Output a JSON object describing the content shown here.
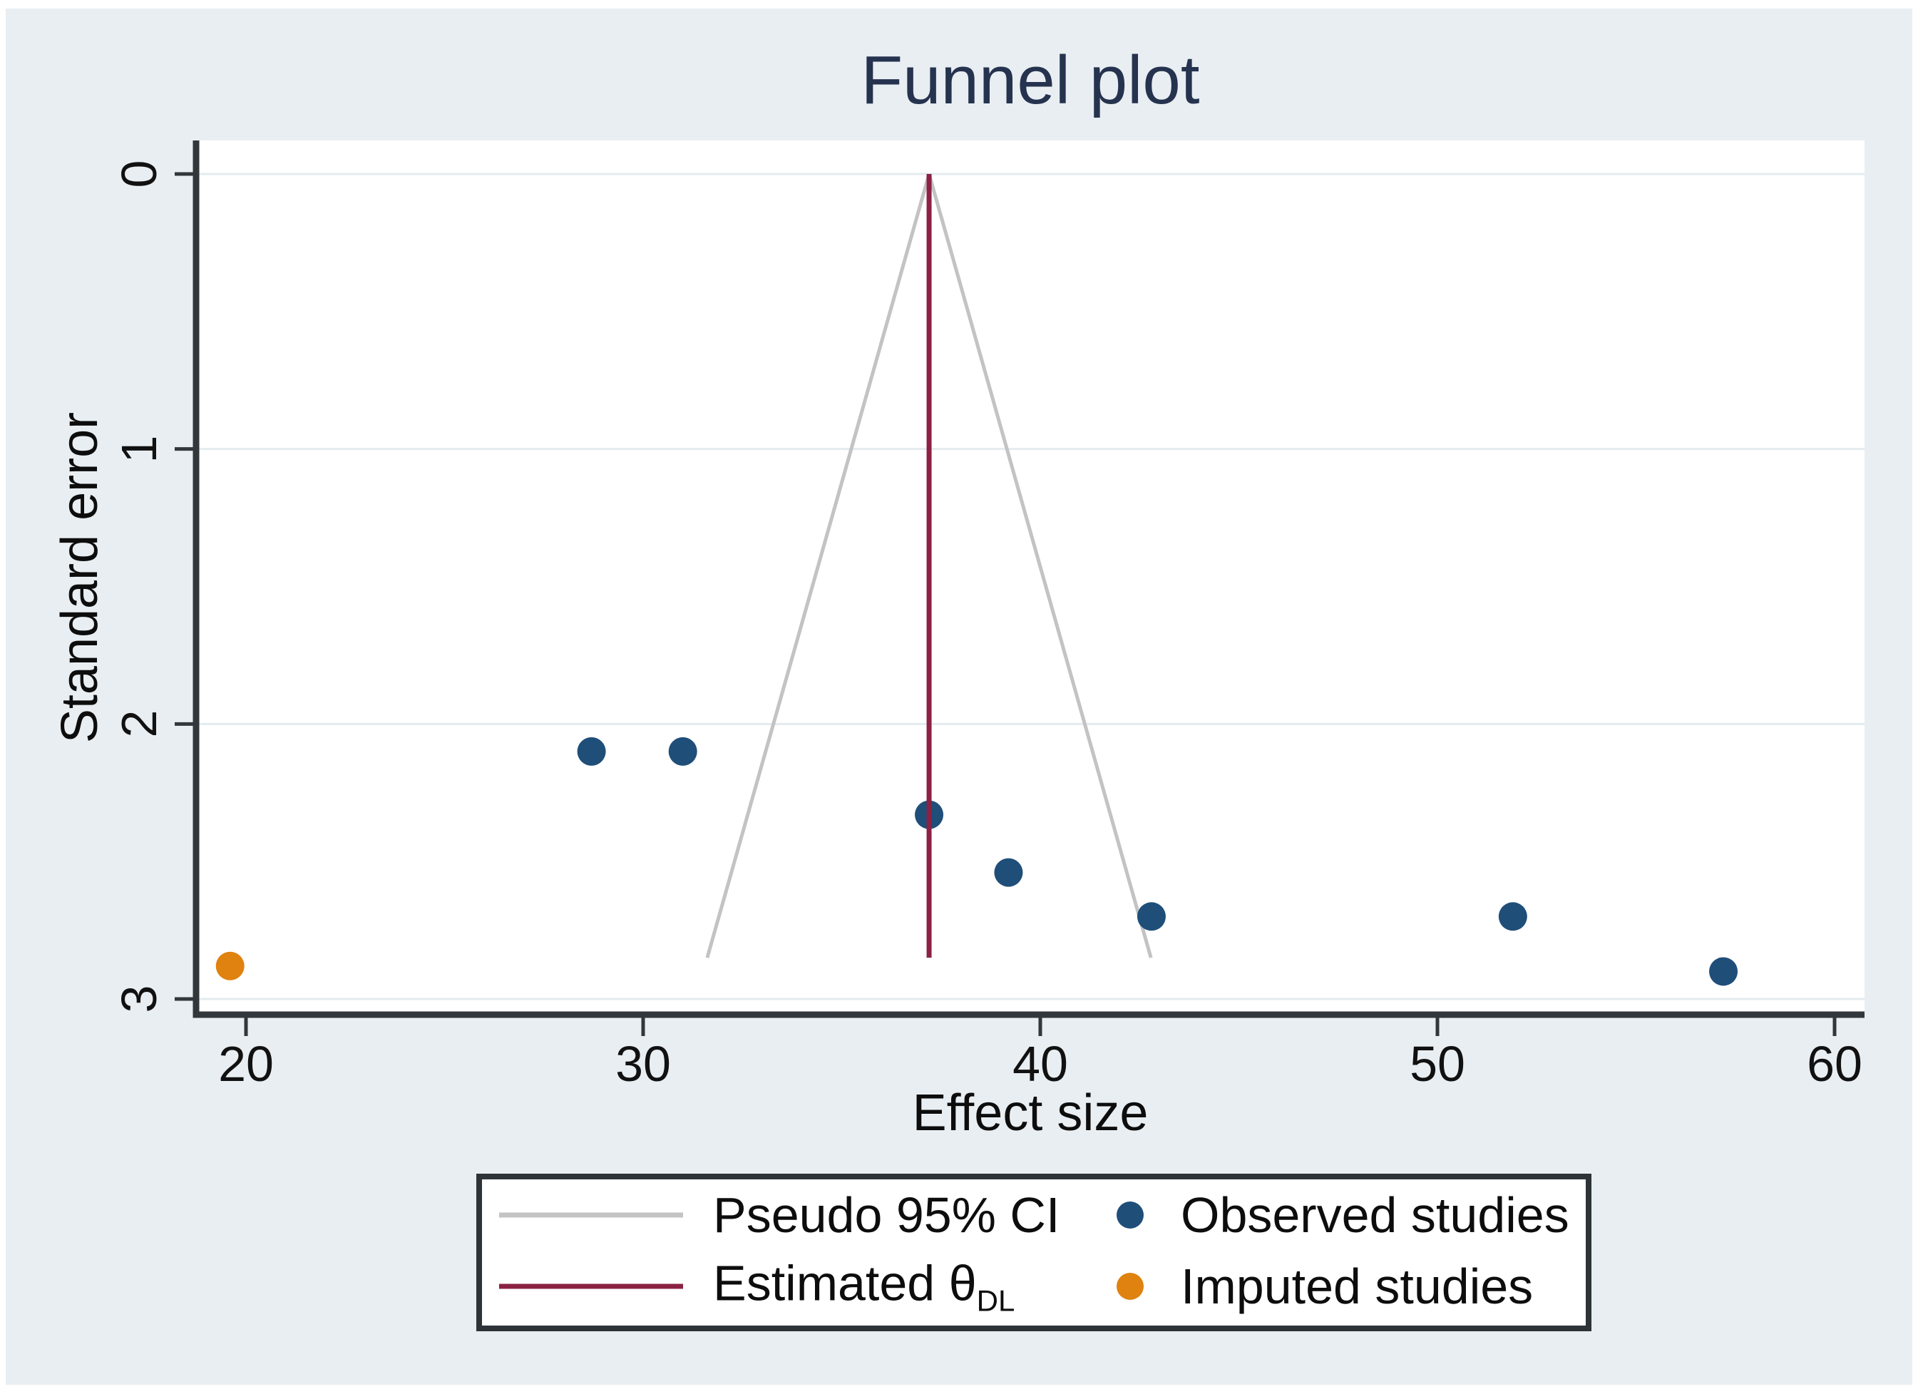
{
  "page": {
    "background": "#ffffff",
    "graph_background": "#e9eef2"
  },
  "title": {
    "text": "Funnel plot",
    "color": "#26334f"
  },
  "axes": {
    "x": {
      "label": "Effect size",
      "ticks": [
        "20",
        "30",
        "40",
        "50",
        "60"
      ],
      "tick_values": [
        20,
        30,
        40,
        50,
        60
      ]
    },
    "y": {
      "label": "Standard error",
      "ticks": [
        "0",
        "1",
        "2",
        "3"
      ],
      "tick_values": [
        0,
        1,
        2,
        3
      ]
    }
  },
  "legend": {
    "items": [
      {
        "label": "Pseudo 95% CI",
        "marker": "line",
        "color": "#c3c3c3"
      },
      {
        "label": "Observed studies",
        "marker": "dot",
        "color": "#1f4e79"
      },
      {
        "label_prefix": "Estimated θ",
        "label_sub": "DL",
        "marker": "line",
        "color": "#8b2143"
      },
      {
        "label": "Imputed studies",
        "marker": "dot",
        "color": "#e0820f"
      }
    ]
  },
  "chart_data": {
    "type": "scatter",
    "title": "Funnel plot",
    "xlabel": "Effect size",
    "ylabel": "Standard error",
    "x_ticks": [
      20,
      30,
      40,
      50,
      60
    ],
    "y_ticks": [
      0,
      1,
      2,
      3
    ],
    "xlim": [
      18.7,
      60.8
    ],
    "ylim_standard_error": [
      0,
      3.06
    ],
    "y_axis_inverted": true,
    "grid": "horizontal-only",
    "legend_position": "bottom",
    "estimated_theta_dl": 37.2,
    "pseudo_ci": {
      "multiplier": 1.96,
      "max_se": 2.85,
      "apex": [
        37.2,
        0
      ]
    },
    "series": [
      {
        "name": "Observed studies",
        "color": "#1f4e79",
        "points": [
          [
            28.7,
            2.1
          ],
          [
            31.0,
            2.1
          ],
          [
            37.2,
            2.33
          ],
          [
            39.2,
            2.54
          ],
          [
            42.8,
            2.7
          ],
          [
            51.9,
            2.7
          ],
          [
            57.2,
            2.9
          ]
        ]
      },
      {
        "name": "Imputed studies",
        "color": "#e0820f",
        "points": [
          [
            19.6,
            2.88
          ]
        ]
      }
    ],
    "lines": [
      {
        "name": "Pseudo 95% CI",
        "style": "funnel",
        "color": "#c3c3c3"
      },
      {
        "name": "Estimated θDL",
        "style": "vertical",
        "x": 37.2,
        "color": "#8b2143"
      }
    ],
    "colors": {
      "gridline": "#e4ebee",
      "axis": "#32373c",
      "plot_background": "#ffffff"
    }
  }
}
